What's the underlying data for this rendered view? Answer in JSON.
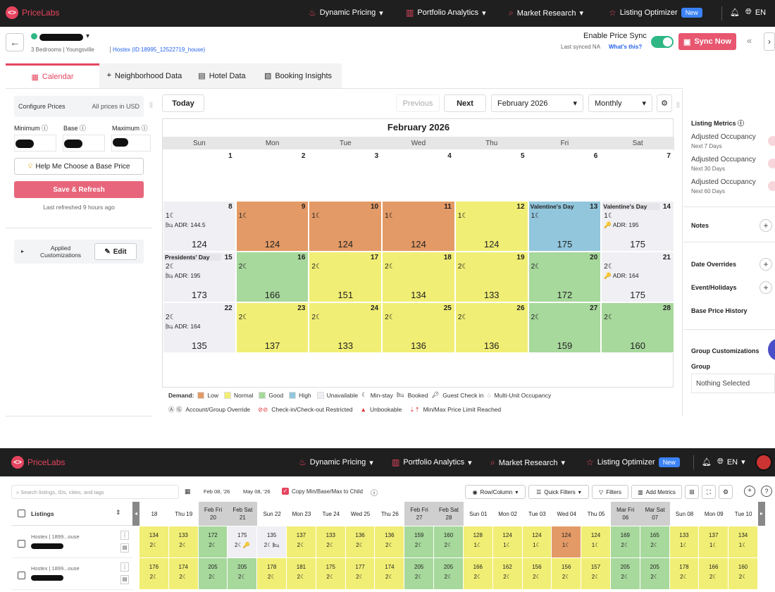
{
  "brand": {
    "name": "PriceLabs",
    "accent": "#e6455f"
  },
  "nav": {
    "items": [
      {
        "label": "Dynamic Pricing",
        "icon": "flame-icon"
      },
      {
        "label": "Portfolio Analytics",
        "icon": "chart-icon"
      },
      {
        "label": "Market Research",
        "icon": "search-icon"
      },
      {
        "label": "Listing Optimizer",
        "icon": "star-icon",
        "badge": "New"
      }
    ],
    "lang": "EN"
  },
  "listing": {
    "subtitle": "3 Bedrooms | Youngsville",
    "channel": "Hostex (ID:18995_12522719_house)",
    "enable_sync": "Enable Price Sync",
    "last_synced": "Last synced NA",
    "whats_this": "What's this?",
    "sync_now": "Sync Now"
  },
  "tabs": [
    "Calendar",
    "Neighborhood Data",
    "Hotel Data",
    "Booking Insights"
  ],
  "left": {
    "configure": "Configure Prices",
    "currency": "All prices in USD",
    "min": "Minimum",
    "base": "Base",
    "max": "Maximum",
    "help": "Help Me Choose a Base Price",
    "save": "Save & Refresh",
    "refreshed": "Last refreshed 9 hours ago",
    "applied": "Applied Customizations",
    "edit": "Edit"
  },
  "toolbar": {
    "today": "Today",
    "previous": "Previous",
    "next": "Next",
    "month": "February 2026",
    "view": "Monthly"
  },
  "calendar": {
    "title": "February 2026",
    "dow": [
      "Sun",
      "Mon",
      "Tue",
      "Wed",
      "Thu",
      "Fri",
      "Sat"
    ],
    "colors": {
      "low": "#e39a66",
      "normal": "#f1ee75",
      "good": "#a7d89c",
      "high": "#92c6dc",
      "unavailable": "#f0eff3",
      "empty": "#ffffff"
    },
    "weeks": [
      [
        {
          "day": "1",
          "demand": "empty"
        },
        {
          "day": "2",
          "demand": "empty"
        },
        {
          "day": "3",
          "demand": "empty"
        },
        {
          "day": "4",
          "demand": "empty"
        },
        {
          "day": "5",
          "demand": "empty"
        },
        {
          "day": "6",
          "demand": "empty"
        },
        {
          "day": "7",
          "demand": "empty"
        }
      ],
      [
        {
          "day": "8",
          "demand": "unavailable",
          "ms": "1☾",
          "adr": "🛏 ADR: 144.5",
          "price": "124"
        },
        {
          "day": "9",
          "demand": "low",
          "ms": "1☾",
          "price": "124"
        },
        {
          "day": "10",
          "demand": "low",
          "ms": "1☾",
          "price": "124"
        },
        {
          "day": "11",
          "demand": "low",
          "ms": "1☾",
          "price": "124"
        },
        {
          "day": "12",
          "demand": "normal",
          "ms": "1☾",
          "price": "124"
        },
        {
          "day": "13",
          "demand": "high",
          "event": "Valentine's Day",
          "ms": "1☾",
          "price": "175"
        },
        {
          "day": "14",
          "demand": "unavailable",
          "event": "Valentine's Day",
          "ms": "1☾",
          "adr": "🔑 ADR: 195",
          "price": "175"
        }
      ],
      [
        {
          "day": "15",
          "demand": "unavailable",
          "event": "Presidents' Day",
          "ms": "2☾",
          "adr": "🛏 ADR: 195",
          "price": "173"
        },
        {
          "day": "16",
          "demand": "good",
          "ms": "2☾",
          "price": "166"
        },
        {
          "day": "17",
          "demand": "normal",
          "ms": "2☾",
          "price": "151"
        },
        {
          "day": "18",
          "demand": "normal",
          "ms": "2☾",
          "price": "134"
        },
        {
          "day": "19",
          "demand": "normal",
          "ms": "2☾",
          "price": "133"
        },
        {
          "day": "20",
          "demand": "good",
          "ms": "2☾",
          "price": "172"
        },
        {
          "day": "21",
          "demand": "unavailable",
          "ms": "2☾",
          "adr": "🔑 ADR: 164",
          "price": "175"
        }
      ],
      [
        {
          "day": "22",
          "demand": "unavailable",
          "ms": "2☾",
          "adr": "🛏 ADR: 164",
          "price": "135"
        },
        {
          "day": "23",
          "demand": "normal",
          "ms": "2☾",
          "price": "137"
        },
        {
          "day": "24",
          "demand": "normal",
          "ms": "2☾",
          "price": "133"
        },
        {
          "day": "25",
          "demand": "normal",
          "ms": "2☾",
          "price": "136"
        },
        {
          "day": "26",
          "demand": "normal",
          "ms": "2☾",
          "price": "136"
        },
        {
          "day": "27",
          "demand": "good",
          "ms": "2☾",
          "price": "159"
        },
        {
          "day": "28",
          "demand": "good",
          "ms": "2☾",
          "price": "160"
        }
      ]
    ]
  },
  "legend": {
    "demand": "Demand:",
    "items": [
      {
        "label": "Low",
        "color": "#e39a66"
      },
      {
        "label": "Normal",
        "color": "#f1ee75"
      },
      {
        "label": "Good",
        "color": "#a7d89c"
      },
      {
        "label": "High",
        "color": "#92c6dc"
      },
      {
        "label": "Unavailable",
        "color": "#f0eff3"
      }
    ],
    "minstay": "Min-stay",
    "booked": "Booked",
    "checkin": "Guest Check in",
    "multi": "Multi-Unit Occupancy",
    "override": "Account/Group Override",
    "restricted": "Check-in/Check-out Restricted",
    "unbookable": "Unbookable",
    "limit": "Min/Max Price Limit Reached"
  },
  "right": {
    "metrics_title": "Listing Metrics",
    "metrics": [
      {
        "label": "Adjusted Occupancy",
        "sub": "Next 7 Days"
      },
      {
        "label": "Adjusted Occupancy",
        "sub": "Next 30 Days"
      },
      {
        "label": "Adjusted Occupancy",
        "sub": "Next 60 Days"
      }
    ],
    "notes": "Notes",
    "date_overrides": "Date Overrides",
    "events": "Event/Holidays",
    "base_history": "Base Price History",
    "group_custom": "Group Customizations",
    "group": "Group",
    "group_value": "Nothing Selected"
  },
  "mc": {
    "search_placeholder": "Search listings, IDs, cities, and tags",
    "date_from": "Feb 08, '26",
    "date_to": "May 08, '26",
    "copy": "Copy Min/Base/Max to Child",
    "rowcol": "Row/Column",
    "quick": "Quick Filters",
    "filters": "Filters",
    "metrics": "Add Metrics",
    "listings": "Listings",
    "headers": [
      {
        "top": "",
        "bot": "18",
        "d": "normal"
      },
      {
        "top": "Thu 19",
        "bot": "",
        "d": "normal"
      },
      {
        "top": "Feb Fri",
        "bot": "20",
        "d": "weekend"
      },
      {
        "top": "Feb Sat",
        "bot": "21",
        "d": "weekend"
      },
      {
        "top": "Sun 22",
        "bot": "",
        "d": "normal"
      },
      {
        "top": "Mon 23",
        "bot": "",
        "d": "normal"
      },
      {
        "top": "Tue 24",
        "bot": "",
        "d": "normal"
      },
      {
        "top": "Wed 25",
        "bot": "",
        "d": "normal"
      },
      {
        "top": "Thu 26",
        "bot": "",
        "d": "normal"
      },
      {
        "top": "Feb Fri",
        "bot": "27",
        "d": "weekend"
      },
      {
        "top": "Feb Sat",
        "bot": "28",
        "d": "weekend"
      },
      {
        "top": "Sun 01",
        "bot": "",
        "d": "normal"
      },
      {
        "top": "Mon 02",
        "bot": "",
        "d": "normal"
      },
      {
        "top": "Tue 03",
        "bot": "",
        "d": "normal"
      },
      {
        "top": "Wed 04",
        "bot": "",
        "d": "normal"
      },
      {
        "top": "Thu 05",
        "bot": "",
        "d": "normal"
      },
      {
        "top": "Mar Fri",
        "bot": "06",
        "d": "weekend"
      },
      {
        "top": "Mar Sat",
        "bot": "07",
        "d": "weekend"
      },
      {
        "top": "Sun 08",
        "bot": "",
        "d": "normal"
      },
      {
        "top": "Mon 09",
        "bot": "",
        "d": "normal"
      },
      {
        "top": "Tue 10",
        "bot": "",
        "d": "normal"
      }
    ],
    "rows": [
      {
        "name": "Hostex | 1899...ouse",
        "cells": [
          {
            "p": "134",
            "s": "2☾",
            "d": "normal"
          },
          {
            "p": "133",
            "s": "2☾",
            "d": "normal"
          },
          {
            "p": "172",
            "s": "2☾",
            "d": "good"
          },
          {
            "p": "175",
            "s": "2☾🔑",
            "d": "unavailable"
          },
          {
            "p": "135",
            "s": "2☾🛏",
            "d": "unavailable"
          },
          {
            "p": "137",
            "s": "2☾",
            "d": "normal"
          },
          {
            "p": "133",
            "s": "2☾",
            "d": "normal"
          },
          {
            "p": "136",
            "s": "2☾",
            "d": "normal"
          },
          {
            "p": "136",
            "s": "2☾",
            "d": "normal"
          },
          {
            "p": "159",
            "s": "2☾",
            "d": "good"
          },
          {
            "p": "160",
            "s": "2☾",
            "d": "good"
          },
          {
            "p": "128",
            "s": "1☾",
            "d": "normal"
          },
          {
            "p": "124",
            "s": "1☾",
            "d": "normal"
          },
          {
            "p": "124",
            "s": "1☾",
            "d": "normal"
          },
          {
            "p": "124",
            "s": "1☾",
            "d": "low"
          },
          {
            "p": "124",
            "s": "1☾",
            "d": "normal"
          },
          {
            "p": "169",
            "s": "2☾",
            "d": "good"
          },
          {
            "p": "165",
            "s": "2☾",
            "d": "good"
          },
          {
            "p": "133",
            "s": "1☾",
            "d": "normal"
          },
          {
            "p": "137",
            "s": "1☾",
            "d": "normal"
          },
          {
            "p": "134",
            "s": "1☾",
            "d": "normal"
          }
        ]
      },
      {
        "name": "Hostex | 1899...ouse",
        "cells": [
          {
            "p": "176",
            "s": "2☾",
            "d": "normal"
          },
          {
            "p": "174",
            "s": "2☾",
            "d": "normal"
          },
          {
            "p": "205",
            "s": "2☾",
            "d": "good"
          },
          {
            "p": "205",
            "s": "2☾",
            "d": "good"
          },
          {
            "p": "178",
            "s": "2☾",
            "d": "normal"
          },
          {
            "p": "181",
            "s": "2☾",
            "d": "normal"
          },
          {
            "p": "175",
            "s": "2☾",
            "d": "normal"
          },
          {
            "p": "177",
            "s": "2☾",
            "d": "normal"
          },
          {
            "p": "174",
            "s": "2☾",
            "d": "normal"
          },
          {
            "p": "205",
            "s": "2☾",
            "d": "good"
          },
          {
            "p": "205",
            "s": "2☾",
            "d": "good"
          },
          {
            "p": "166",
            "s": "2☾",
            "d": "normal"
          },
          {
            "p": "162",
            "s": "2☾",
            "d": "normal"
          },
          {
            "p": "156",
            "s": "2☾",
            "d": "normal"
          },
          {
            "p": "156",
            "s": "2☾",
            "d": "normal"
          },
          {
            "p": "157",
            "s": "2☾",
            "d": "normal"
          },
          {
            "p": "205",
            "s": "2☾",
            "d": "good"
          },
          {
            "p": "205",
            "s": "2☾",
            "d": "good"
          },
          {
            "p": "178",
            "s": "2☾",
            "d": "normal"
          },
          {
            "p": "166",
            "s": "2☾",
            "d": "normal"
          },
          {
            "p": "160",
            "s": "2☾",
            "d": "normal"
          }
        ]
      }
    ]
  }
}
